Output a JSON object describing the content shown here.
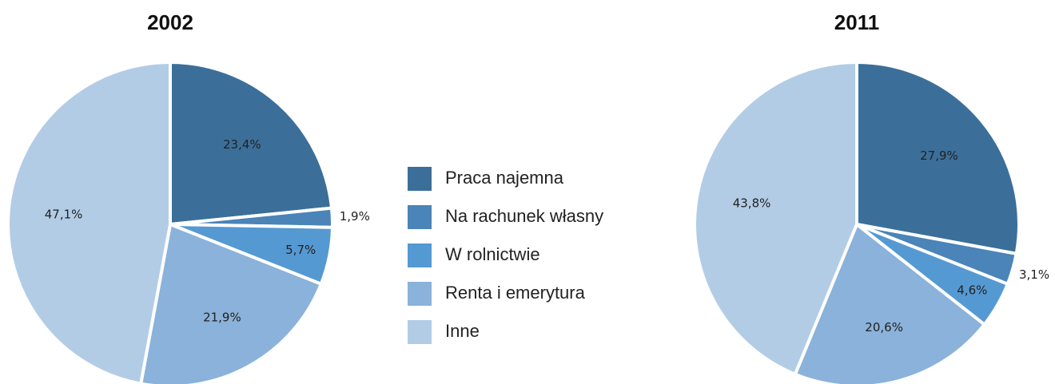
{
  "chart_data": [
    {
      "type": "pie",
      "title": "2002",
      "values": [
        23.4,
        1.9,
        5.7,
        21.9,
        47.1
      ],
      "value_labels": [
        "23,4%",
        "1,9%",
        "5,7%",
        "21,9%",
        "47,1%"
      ]
    },
    {
      "type": "pie",
      "title": "2011",
      "values": [
        27.9,
        3.1,
        4.6,
        20.6,
        43.8
      ],
      "value_labels": [
        "27,9%",
        "3,1%",
        "4,6%",
        "20,6%",
        "43,8%"
      ]
    }
  ],
  "legend": {
    "labels": [
      "Praca najemna",
      "Na rachunek własny",
      "W rolnictwie",
      "Renta i emerytura",
      "Inne"
    ],
    "colors": [
      "#3b6f9a",
      "#4a84b8",
      "#5599d3",
      "#8ab2da",
      "#b3cce6"
    ]
  }
}
